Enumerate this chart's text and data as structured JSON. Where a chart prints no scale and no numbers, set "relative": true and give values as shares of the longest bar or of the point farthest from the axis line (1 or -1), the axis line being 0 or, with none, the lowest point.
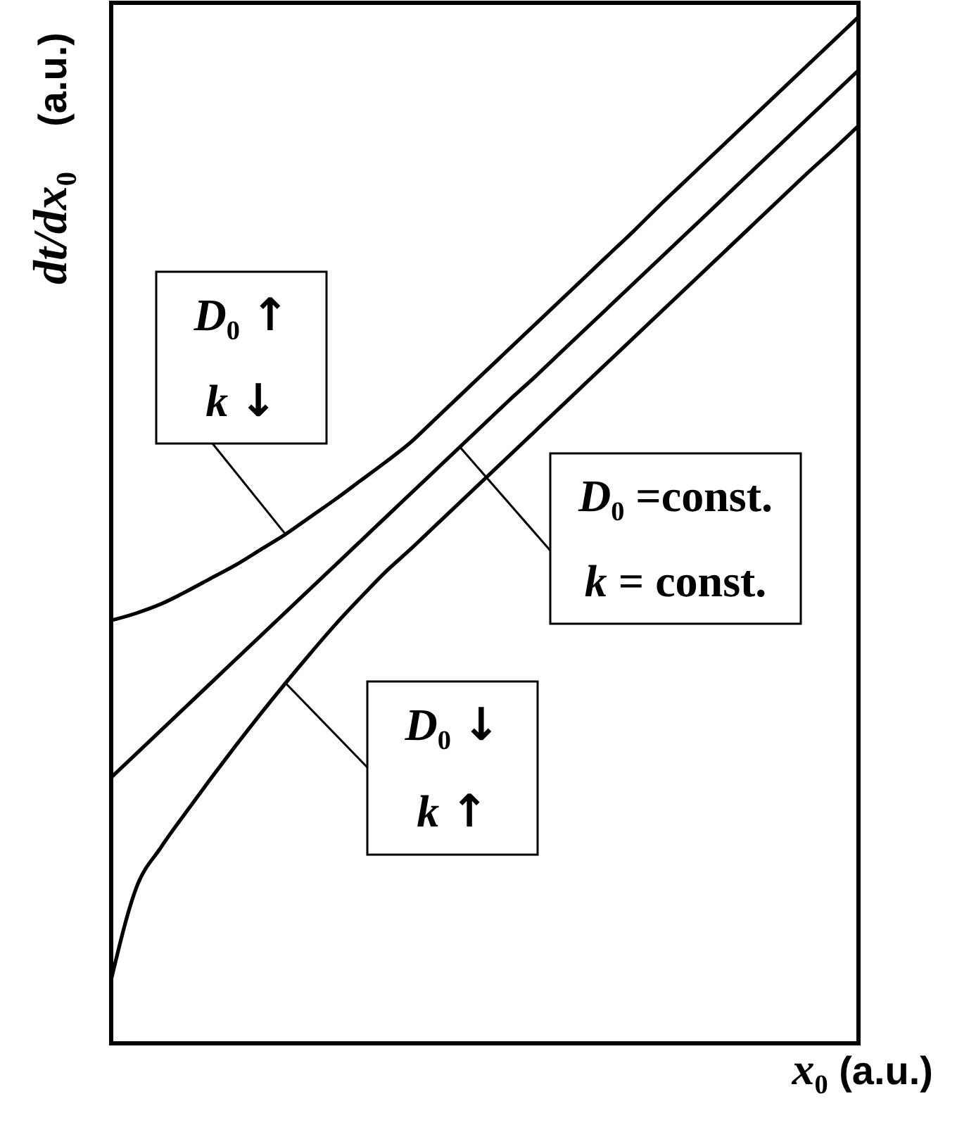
{
  "chart_data": {
    "type": "line",
    "relative": true,
    "xlabel": "x₀ (a.u.)",
    "ylabel": "dt/dx₀ (a.u.)",
    "categories": [
      null,
      null,
      null,
      null,
      null,
      null,
      null,
      null,
      null,
      null,
      null,
      null,
      null,
      null,
      null,
      null,
      null,
      null,
      null,
      null,
      null,
      null,
      null,
      null,
      null,
      null,
      null,
      null,
      null,
      null,
      null
    ],
    "series": [
      {
        "color": "#000000",
        "values": [
          0.412,
          0.419,
          0.428,
          0.44,
          0.453,
          0.466,
          0.481,
          0.496,
          0.513,
          0.53,
          0.548,
          0.566,
          0.585,
          0.608,
          0.631,
          0.654,
          0.677,
          0.7,
          0.723,
          0.746,
          0.769,
          0.792,
          0.816,
          0.839,
          0.862,
          0.885,
          0.908,
          0.931,
          0.954,
          0.977,
          1
        ]
      },
      {
        "color": "#000000",
        "values": [
          0.259,
          0.282,
          0.305,
          0.328,
          0.351,
          0.374,
          0.397,
          0.42,
          0.443,
          0.466,
          0.489,
          0.512,
          0.535,
          0.558,
          0.581,
          0.604,
          0.627,
          0.649,
          0.672,
          0.695,
          0.718,
          0.741,
          0.764,
          0.787,
          0.81,
          0.833,
          0.856,
          0.879,
          0.902,
          0.925,
          0.948
        ]
      },
      {
        "color": "#000000",
        "values": [
          0.062,
          0.151,
          0.191,
          0.225,
          0.258,
          0.29,
          0.321,
          0.351,
          0.38,
          0.408,
          0.434,
          0.459,
          0.481,
          0.504,
          0.527,
          0.55,
          0.573,
          0.596,
          0.619,
          0.642,
          0.665,
          0.688,
          0.711,
          0.734,
          0.757,
          0.78,
          0.803,
          0.826,
          0.849,
          0.871,
          0.894
        ]
      }
    ],
    "annotations": [
      "D₀ ↑\nk ↓",
      "D₀ =const.\nk = const.",
      "D₀ ↓\nk ↑"
    ]
  }
}
